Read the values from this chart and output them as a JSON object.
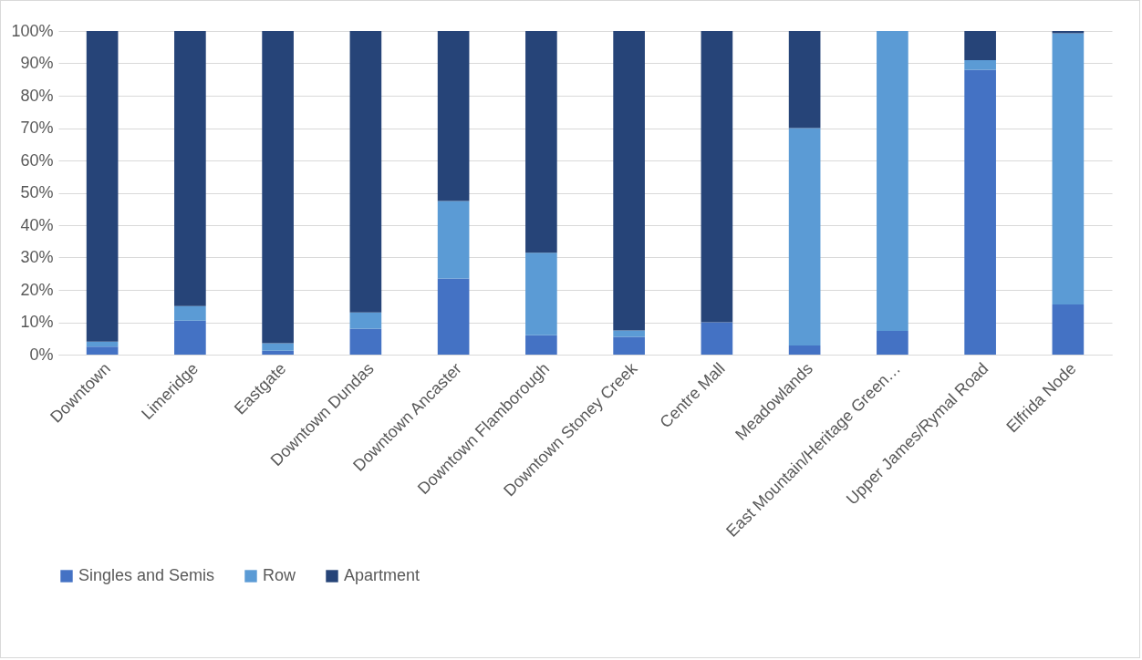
{
  "chart_data": {
    "type": "bar",
    "stacked": true,
    "categories": [
      "Downtown",
      "Limeridge",
      "Eastgate",
      "Downtown Dundas",
      "Downtown Ancaster",
      "Downtown Flamborough",
      "Downtown Stoney Creek",
      "Centre Mall",
      "Meadowlands",
      "East Mountain/Heritage Green…",
      "Upper James/Rymal Road",
      "Elfrida Node"
    ],
    "series": [
      {
        "name": "Singles and Semis",
        "color": "#4472c4",
        "values": [
          2.5,
          10.5,
          1.2,
          8,
          23.5,
          6,
          5.5,
          10,
          2.8,
          7.3,
          88,
          15.5
        ]
      },
      {
        "name": "Row",
        "color": "#5b9bd5",
        "values": [
          1.5,
          4.5,
          2.3,
          5,
          24,
          25.5,
          2,
          0,
          67.2,
          92.7,
          3,
          83.8
        ]
      },
      {
        "name": "Apartment",
        "color": "#264478",
        "values": [
          96,
          85,
          96.5,
          87,
          52.5,
          68.5,
          92.5,
          90,
          30,
          0,
          9,
          0.7
        ]
      }
    ],
    "ylim": [
      0,
      100
    ],
    "yticks": [
      {
        "value": 0,
        "label": "0%"
      },
      {
        "value": 10,
        "label": "10%"
      },
      {
        "value": 20,
        "label": "20%"
      },
      {
        "value": 30,
        "label": "30%"
      },
      {
        "value": 40,
        "label": "40%"
      },
      {
        "value": 50,
        "label": "50%"
      },
      {
        "value": 60,
        "label": "60%"
      },
      {
        "value": 70,
        "label": "70%"
      },
      {
        "value": 80,
        "label": "80%"
      },
      {
        "value": 90,
        "label": "90%"
      },
      {
        "value": 100,
        "label": "100%"
      }
    ],
    "grid": "y",
    "legend": "bottom"
  }
}
